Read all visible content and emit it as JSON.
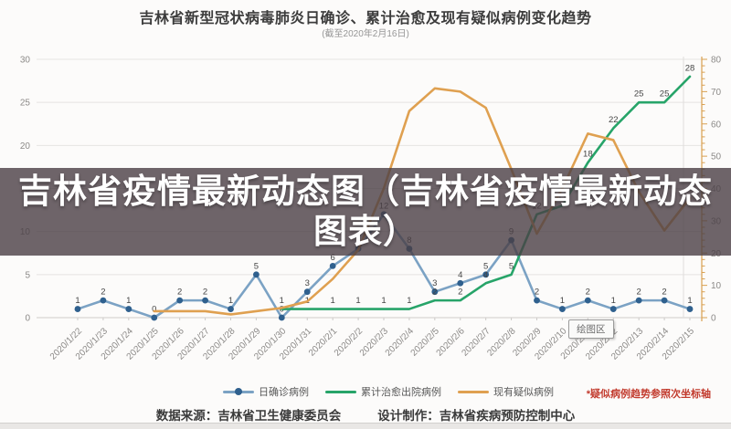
{
  "header": {
    "title": "吉林省新型冠状病毒肺炎日确诊、累计治愈及现有疑似病例变化趋势",
    "subtitle": "(截至2020年2月16日)"
  },
  "overlay": {
    "line1": "吉林省疫情最新动态图（吉林省疫情最新动态",
    "line2": "图表）"
  },
  "plot_area_tooltip": "绘图区",
  "legend": {
    "note": "*疑似病例趋势参照次坐标轴",
    "note_color": "#c23b2e"
  },
  "footer": {
    "source": "数据来源：吉林省卫生健康委员会",
    "credit": "设计制作：吉林省疾病预防控制中心"
  },
  "chart_data": {
    "type": "line",
    "x": [
      "2020/1/22",
      "2020/1/23",
      "2020/1/24",
      "2020/1/25",
      "2020/1/26",
      "2020/1/27",
      "2020/1/28",
      "2020/1/29",
      "2020/1/30",
      "2020/1/31",
      "2020/2/1",
      "2020/2/2",
      "2020/2/3",
      "2020/2/4",
      "2020/2/5",
      "2020/2/6",
      "2020/2/7",
      "2020/2/8",
      "2020/2/9",
      "2020/2/10",
      "2020/2/11",
      "2020/2/12",
      "2020/2/13",
      "2020/2/14",
      "2020/2/15"
    ],
    "left_axis": {
      "min": 0,
      "max": 30,
      "step": 5
    },
    "right_axis": {
      "min": 0,
      "max": 80,
      "step": 10,
      "minor_step": 2,
      "color": "#d9a050"
    },
    "grid": true,
    "legend_position": "bottom",
    "series": [
      {
        "name": "日确诊病例",
        "axis": "left",
        "color": "#7ba2c4",
        "marker_color": "#2f608e",
        "markers": true,
        "labels": true,
        "start_index": 0,
        "values": [
          1,
          2,
          1,
          0,
          2,
          2,
          1,
          5,
          0,
          3,
          6,
          8,
          12,
          8,
          3,
          4,
          5,
          9,
          2,
          1,
          2,
          1,
          2,
          2,
          1
        ]
      },
      {
        "name": "累计治愈出院病例",
        "axis": "left",
        "color": "#27a469",
        "marker_color": "#1e7a4f",
        "markers": false,
        "labels": true,
        "start_index": 8,
        "values": [
          1,
          1,
          1,
          1,
          1,
          1,
          2,
          2,
          4,
          5,
          12,
          13,
          18,
          22,
          25,
          25,
          28
        ]
      },
      {
        "name": "现有疑似病例",
        "axis": "right",
        "color": "#dfa050",
        "marker_color": "#dfa050",
        "markers": false,
        "labels": false,
        "start_index": 3,
        "values": [
          2,
          2,
          2,
          1,
          2,
          3,
          5,
          12,
          21,
          40,
          64,
          71,
          70,
          65,
          46,
          26,
          40,
          57,
          55,
          39,
          27,
          37
        ]
      }
    ]
  }
}
